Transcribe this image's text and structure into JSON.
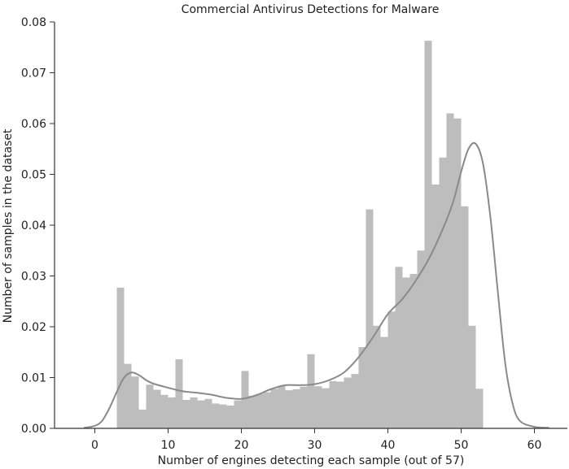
{
  "chart_data": {
    "type": "bar",
    "title": "Commercial Antivirus Detections for Malware",
    "xlabel": "Number of engines detecting each sample (out of 57)",
    "ylabel": "Number of samples in the dataset",
    "xlim": [
      -5.5,
      64.5
    ],
    "ylim": [
      0,
      0.08
    ],
    "x_ticks": [
      0,
      10,
      20,
      30,
      40,
      50,
      60
    ],
    "y_ticks": [
      0.0,
      0.01,
      0.02,
      0.03,
      0.04,
      0.05,
      0.06,
      0.07,
      0.08
    ],
    "grid": false,
    "colors": {
      "bars": "#bdbdbd",
      "kde_line": "#8a8a8a",
      "axis": "#333333"
    },
    "histogram": {
      "bin_width": 1.0,
      "bin_start": 3,
      "values": [
        0.0277,
        0.0127,
        0.0102,
        0.0037,
        0.0086,
        0.0076,
        0.0066,
        0.0061,
        0.0136,
        0.0056,
        0.0061,
        0.0055,
        0.0058,
        0.0049,
        0.0047,
        0.0045,
        0.0055,
        0.0113,
        0.0064,
        0.0068,
        0.0071,
        0.0078,
        0.0084,
        0.0075,
        0.0077,
        0.0082,
        0.0146,
        0.0083,
        0.0079,
        0.0093,
        0.0092,
        0.01,
        0.0107,
        0.016,
        0.0431,
        0.0202,
        0.018,
        0.023,
        0.0318,
        0.0297,
        0.0304,
        0.035,
        0.0763,
        0.048,
        0.0533,
        0.062,
        0.061,
        0.0437,
        0.0202,
        0.0078
      ]
    },
    "kde": {
      "x": [
        -1.5,
        0,
        1,
        2,
        3,
        4,
        5,
        6,
        7,
        8,
        10,
        12,
        14,
        16,
        18,
        20,
        22,
        24,
        26,
        28,
        30,
        32,
        34,
        36,
        38,
        40,
        42,
        44,
        46,
        48,
        49,
        50,
        51,
        52,
        53,
        54,
        55,
        56,
        57,
        58,
        60,
        62
      ],
      "y": [
        0.0001,
        0.0005,
        0.0015,
        0.004,
        0.0072,
        0.01,
        0.011,
        0.0105,
        0.0095,
        0.0088,
        0.008,
        0.0073,
        0.007,
        0.0066,
        0.006,
        0.0058,
        0.0065,
        0.0077,
        0.0085,
        0.0085,
        0.0087,
        0.0095,
        0.011,
        0.014,
        0.018,
        0.0225,
        0.0255,
        0.0295,
        0.0345,
        0.041,
        0.045,
        0.0505,
        0.055,
        0.056,
        0.052,
        0.0415,
        0.027,
        0.013,
        0.005,
        0.0015,
        0.0003,
        0.0001
      ]
    }
  }
}
